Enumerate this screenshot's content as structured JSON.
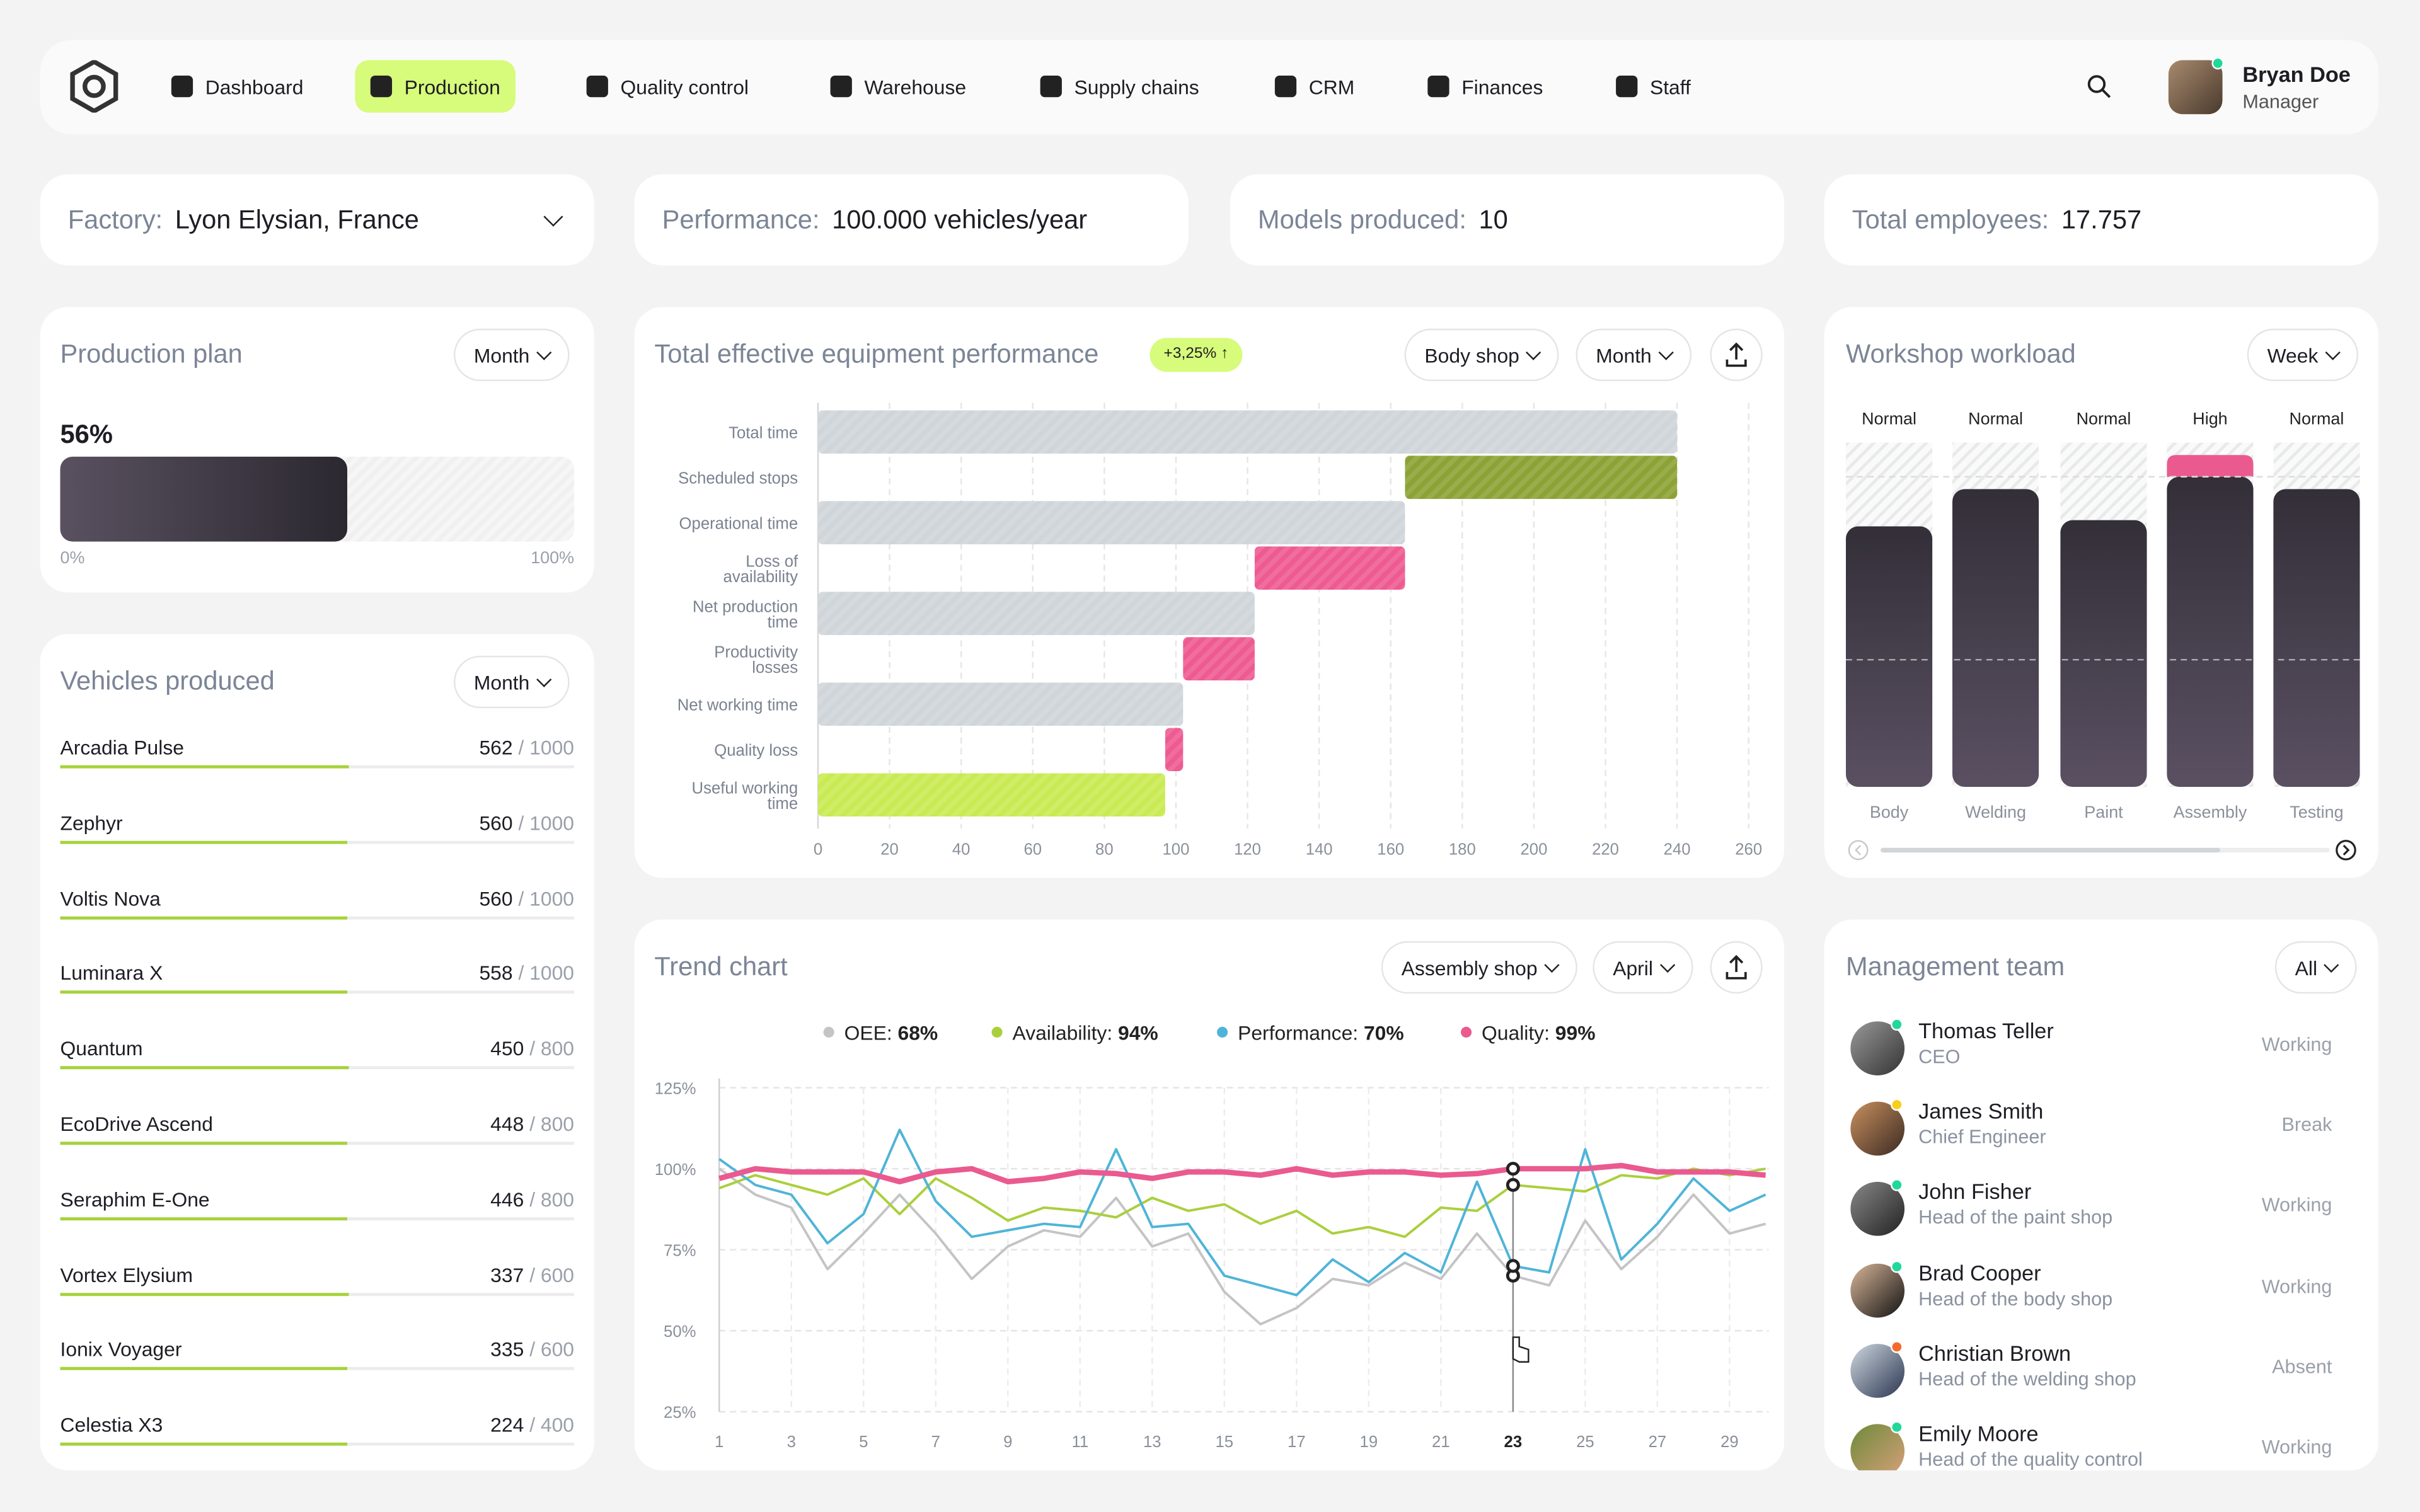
{
  "nav": {
    "items": [
      {
        "label": "Dashboard",
        "icon": "dashboard-icon"
      },
      {
        "label": "Production",
        "icon": "factory-icon",
        "active": true
      },
      {
        "label": "Quality control",
        "icon": "quality-icon"
      },
      {
        "label": "Warehouse",
        "icon": "warehouse-icon"
      },
      {
        "label": "Supply chains",
        "icon": "supply-chain-icon"
      },
      {
        "label": "CRM",
        "icon": "crm-icon"
      },
      {
        "label": "Finances",
        "icon": "finances-icon"
      },
      {
        "label": "Staff",
        "icon": "staff-icon"
      }
    ],
    "user": {
      "name": "Bryan Doe",
      "role": "Manager"
    },
    "accent": "#d7fb7a"
  },
  "kpis": {
    "factory_label": "Factory:",
    "factory_value": "Lyon Elysian,  France",
    "performance_label": "Performance:",
    "performance_value": "100.000 vehicles/year",
    "models_label": "Models produced:",
    "models_value": "10",
    "employees_label": "Total employees:",
    "employees_value": "17.757"
  },
  "production_plan": {
    "title": "Production plan",
    "period": "Month",
    "percent_label": "56%",
    "progress": 0.56,
    "min_label": "0%",
    "max_label": "100%"
  },
  "vehicles": {
    "title": "Vehicles produced",
    "period": "Month",
    "items": [
      {
        "name": "Arcadia Pulse",
        "value": "562",
        "total": "/ 1000",
        "ratio": 0.562
      },
      {
        "name": "Zephyr",
        "value": "560",
        "total": "/ 1000",
        "ratio": 0.56
      },
      {
        "name": "Voltis Nova",
        "value": "560",
        "total": "/ 1000",
        "ratio": 0.56
      },
      {
        "name": "Luminara X",
        "value": "558",
        "total": "/ 1000",
        "ratio": 0.558
      },
      {
        "name": "Quantum",
        "value": "450",
        "total": "/ 800",
        "ratio": 0.5625
      },
      {
        "name": "EcoDrive Ascend",
        "value": "448",
        "total": "/ 800",
        "ratio": 0.56
      },
      {
        "name": "Seraphim E-One",
        "value": "446",
        "total": "/ 800",
        "ratio": 0.5575
      },
      {
        "name": "Vortex Elysium",
        "value": "337",
        "total": "/ 600",
        "ratio": 0.5617
      },
      {
        "name": "Ionix Voyager",
        "value": "335",
        "total": "/ 600",
        "ratio": 0.5583
      },
      {
        "name": "Celestia X3",
        "value": "224",
        "total": "/ 400",
        "ratio": 0.56
      }
    ]
  },
  "teep": {
    "title": "Total effective equipment performance",
    "badge": "+3,25% ↑",
    "shop": "Body shop",
    "period": "Month"
  },
  "trend": {
    "title": "Trend chart",
    "shop": "Assembly shop",
    "period": "April"
  },
  "workshop": {
    "title": "Workshop workload",
    "period": "Week"
  },
  "team": {
    "title": "Management team",
    "filter": "All",
    "members": [
      {
        "name": "Thomas Teller",
        "role": "CEO",
        "status": "Working",
        "dot": "#1fd89a"
      },
      {
        "name": "James Smith",
        "role": "Chief Engineer",
        "status": "Break",
        "dot": "#f7cf1b"
      },
      {
        "name": "John Fisher",
        "role": "Head of the paint shop",
        "status": "Working",
        "dot": "#1fd89a"
      },
      {
        "name": "Brad Cooper",
        "role": "Head of the body shop",
        "status": "Working",
        "dot": "#1fd89a"
      },
      {
        "name": "Christian Brown",
        "role": "Head of the welding shop",
        "status": "Absent",
        "dot": "#f46a2c"
      },
      {
        "name": "Emily Moore",
        "role": "Head of the quality control",
        "status": "Working",
        "dot": "#1fd89a"
      }
    ]
  },
  "chart_data": [
    {
      "type": "bar",
      "orientation": "horizontal",
      "title": "Total effective equipment performance",
      "categories": [
        "Total time",
        "Scheduled stops",
        "Operational time",
        "Loss of availability",
        "Net production time",
        "Productivity losses",
        "Net working time",
        "Quality loss",
        "Useful working time"
      ],
      "ranges": [
        [
          0,
          240
        ],
        [
          164,
          240
        ],
        [
          0,
          164
        ],
        [
          122,
          164
        ],
        [
          0,
          122
        ],
        [
          102,
          122
        ],
        [
          0,
          102
        ],
        [
          97,
          102
        ],
        [
          0,
          97
        ]
      ],
      "colors": [
        "#cfd5d9",
        "#8ca234",
        "#cfd5d9",
        "#ee5a91",
        "#cfd5d9",
        "#ee5a91",
        "#cfd5d9",
        "#ee5a91",
        "#c9ea52"
      ],
      "xlim": [
        0,
        260
      ],
      "xticks": [
        0,
        20,
        40,
        60,
        80,
        100,
        120,
        140,
        160,
        180,
        200,
        220,
        240,
        260
      ],
      "grid": true
    },
    {
      "type": "line",
      "title": "Trend chart",
      "x": [
        1,
        2,
        3,
        4,
        5,
        6,
        7,
        8,
        9,
        10,
        11,
        12,
        13,
        14,
        15,
        16,
        17,
        18,
        19,
        20,
        21,
        22,
        23,
        24,
        25,
        26,
        27,
        28,
        29,
        30
      ],
      "xticks": [
        1,
        3,
        5,
        7,
        9,
        11,
        13,
        15,
        17,
        19,
        21,
        23,
        25,
        27,
        29
      ],
      "highlight_x": 23,
      "yticks": [
        "125%",
        "100%",
        "75%",
        "50%",
        "25%"
      ],
      "ylim": [
        25,
        125
      ],
      "grid": true,
      "legend": "top",
      "series": [
        {
          "name": "OEE",
          "summary": "68%",
          "color": "#c4c4c6",
          "values": [
            100,
            92,
            88,
            69,
            80,
            92,
            80,
            66,
            76,
            81,
            79,
            91,
            76,
            80,
            62,
            52,
            57,
            66,
            64,
            71,
            66,
            80,
            67,
            64,
            84,
            69,
            79,
            92,
            80,
            83
          ]
        },
        {
          "name": "Availability",
          "summary": "94%",
          "color": "#aacf3c",
          "values": [
            94,
            98,
            95,
            92,
            97,
            86,
            97,
            91,
            84,
            88,
            87,
            85,
            91,
            87,
            89,
            83,
            87,
            80,
            82,
            79,
            88,
            87,
            95,
            94,
            93,
            98,
            97,
            100,
            98,
            100
          ]
        },
        {
          "name": "Performance",
          "summary": "70%",
          "color": "#4fb4d8",
          "values": [
            103,
            95,
            92,
            77,
            86,
            112,
            90,
            79,
            81,
            83,
            82,
            106,
            82,
            83,
            67,
            64,
            61,
            72,
            65,
            74,
            68,
            96,
            70,
            68,
            106,
            72,
            83,
            97,
            87,
            92
          ]
        },
        {
          "name": "Quality",
          "summary": "99%",
          "color": "#ea5a8f",
          "values": [
            97,
            100,
            99,
            99,
            99,
            96,
            99,
            100,
            96,
            97,
            99,
            98.5,
            97,
            99,
            99,
            98,
            100,
            98,
            99,
            99,
            98,
            98.5,
            100,
            100,
            100,
            101,
            99,
            99,
            99,
            98
          ]
        }
      ]
    },
    {
      "type": "bar",
      "title": "Workshop workload",
      "categories": [
        "Body",
        "Welding",
        "Paint",
        "Assembly",
        "Testing"
      ],
      "status": [
        "Normal",
        "Normal",
        "Normal",
        "High",
        "Normal"
      ],
      "values": [
        84,
        96,
        86,
        107,
        96
      ],
      "capacity": 100,
      "unit": "%",
      "colors": {
        "normal": "#3e3944",
        "overload": "#ea5a8f"
      }
    }
  ]
}
